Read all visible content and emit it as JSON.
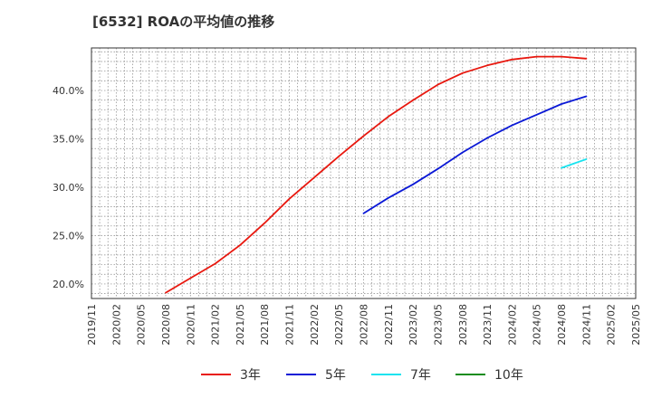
{
  "chart_data": {
    "type": "line",
    "title": "[6532]  ROAの平均値の推移",
    "xlabel": "",
    "ylabel": "",
    "ylim": [
      18.5,
      44.4
    ],
    "y_ticks": [
      20.0,
      25.0,
      30.0,
      35.0,
      40.0
    ],
    "y_tick_labels": [
      "20.0%",
      "25.0%",
      "30.0%",
      "35.0%",
      "40.0%"
    ],
    "x_tick_labels": [
      "2019/11",
      "2020/02",
      "2020/05",
      "2020/08",
      "2020/11",
      "2021/02",
      "2021/05",
      "2021/08",
      "2021/11",
      "2022/02",
      "2022/05",
      "2022/08",
      "2022/11",
      "2023/02",
      "2023/05",
      "2023/08",
      "2023/11",
      "2024/02",
      "2024/05",
      "2024/08",
      "2024/11",
      "2025/02",
      "2025/05"
    ],
    "grid": true,
    "legend_position": "bottom",
    "series": [
      {
        "name": "3年",
        "color": "#e8180f",
        "points": [
          [
            "2020/08",
            19.1
          ],
          [
            "2020/11",
            20.6
          ],
          [
            "2021/02",
            22.1
          ],
          [
            "2021/05",
            24.0
          ],
          [
            "2021/08",
            26.3
          ],
          [
            "2021/11",
            28.8
          ],
          [
            "2022/02",
            31.0
          ],
          [
            "2022/05",
            33.2
          ],
          [
            "2022/08",
            35.3
          ],
          [
            "2022/11",
            37.3
          ],
          [
            "2023/02",
            39.0
          ],
          [
            "2023/05",
            40.6
          ],
          [
            "2023/08",
            41.8
          ],
          [
            "2023/11",
            42.6
          ],
          [
            "2024/02",
            43.2
          ],
          [
            "2024/05",
            43.5
          ],
          [
            "2024/08",
            43.5
          ],
          [
            "2024/11",
            43.3
          ]
        ]
      },
      {
        "name": "5年",
        "color": "#0a18d6",
        "points": [
          [
            "2022/08",
            27.3
          ],
          [
            "2022/11",
            28.9
          ],
          [
            "2023/02",
            30.3
          ],
          [
            "2023/05",
            31.9
          ],
          [
            "2023/08",
            33.6
          ],
          [
            "2023/11",
            35.1
          ],
          [
            "2024/02",
            36.4
          ],
          [
            "2024/05",
            37.5
          ],
          [
            "2024/08",
            38.6
          ],
          [
            "2024/11",
            39.4
          ]
        ]
      },
      {
        "name": "7年",
        "color": "#19e3ef",
        "points": [
          [
            "2024/08",
            32.0
          ],
          [
            "2024/11",
            32.9
          ]
        ]
      },
      {
        "name": "10年",
        "color": "#138c1e",
        "points": []
      }
    ]
  }
}
